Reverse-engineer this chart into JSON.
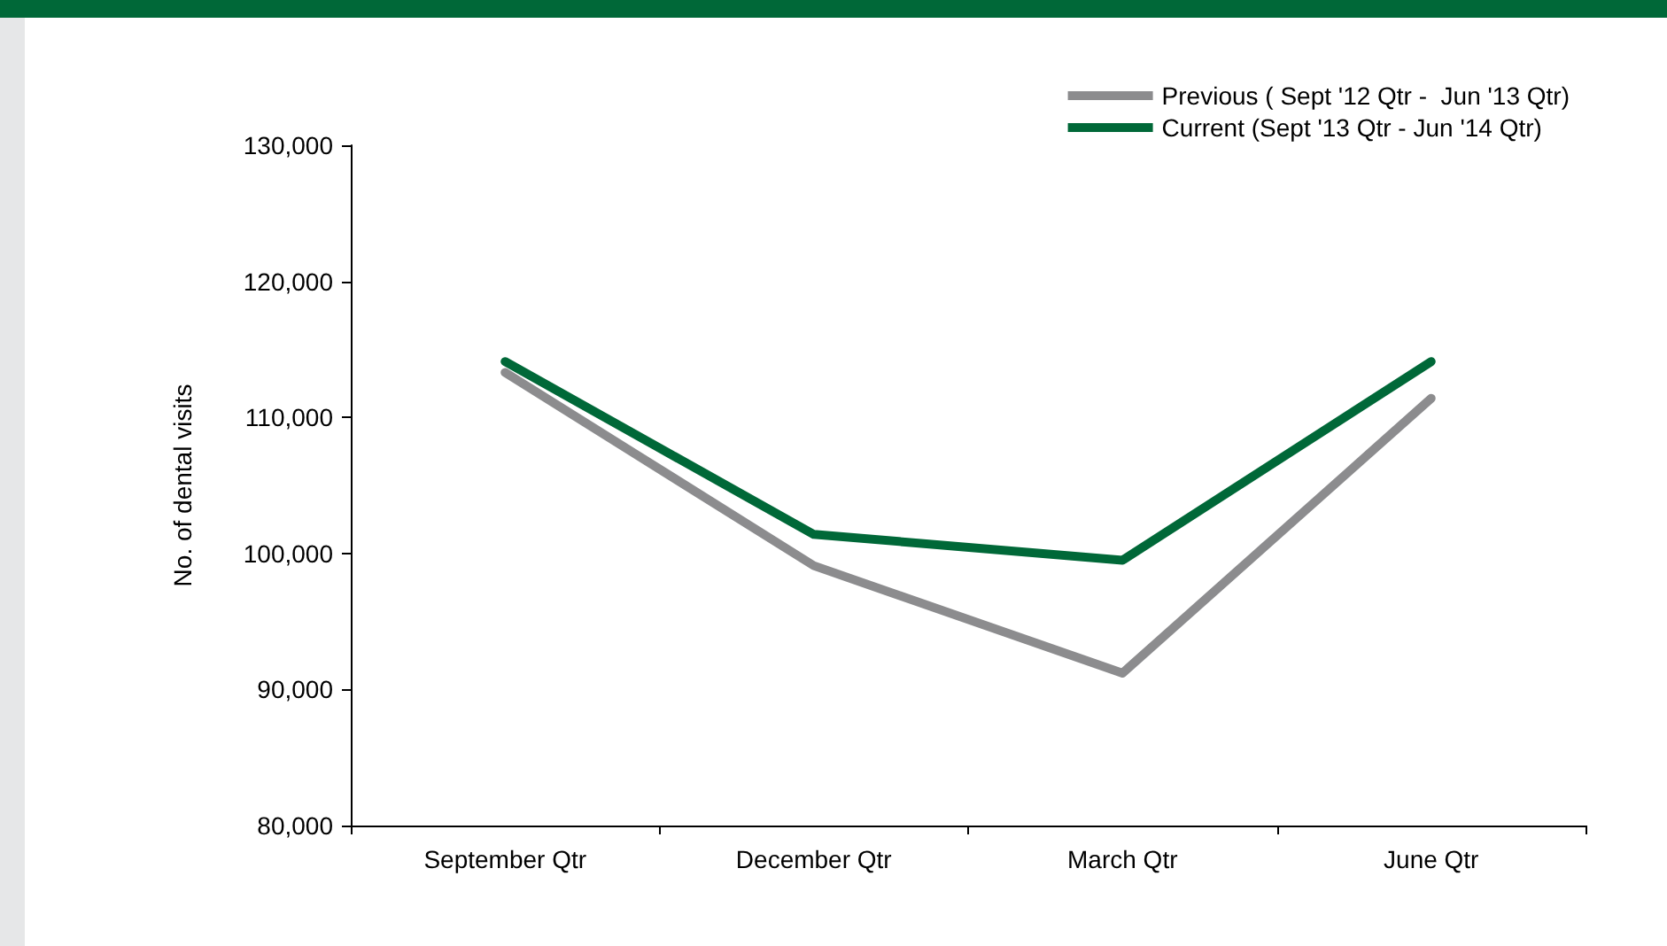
{
  "chart_data": {
    "type": "line",
    "ylabel": "No. of dental visits",
    "categories": [
      "September Qtr",
      "December Qtr",
      "March Qtr",
      "June Qtr"
    ],
    "series": [
      {
        "name": "Previous ( Sept '12 Qtr -  Jun '13 Qtr)",
        "color": "#8c8c8e",
        "values": [
          113300,
          99100,
          91200,
          111400
        ]
      },
      {
        "name": "Current (Sept '13 Qtr - Jun '14 Qtr)",
        "color": "#006838",
        "values": [
          114100,
          101400,
          99500,
          114100
        ]
      }
    ],
    "ylim": [
      80000,
      130000
    ],
    "yticks": [
      {
        "value": 80000,
        "label": "80,000"
      },
      {
        "value": 90000,
        "label": "90,000"
      },
      {
        "value": 100000,
        "label": "100,000"
      },
      {
        "value": 110000,
        "label": "110,000"
      },
      {
        "value": 120000,
        "label": "120,000"
      },
      {
        "value": 130000,
        "label": "130,000"
      }
    ],
    "grid": false,
    "legend": "top right",
    "marker": "none",
    "line_style": "solid"
  }
}
